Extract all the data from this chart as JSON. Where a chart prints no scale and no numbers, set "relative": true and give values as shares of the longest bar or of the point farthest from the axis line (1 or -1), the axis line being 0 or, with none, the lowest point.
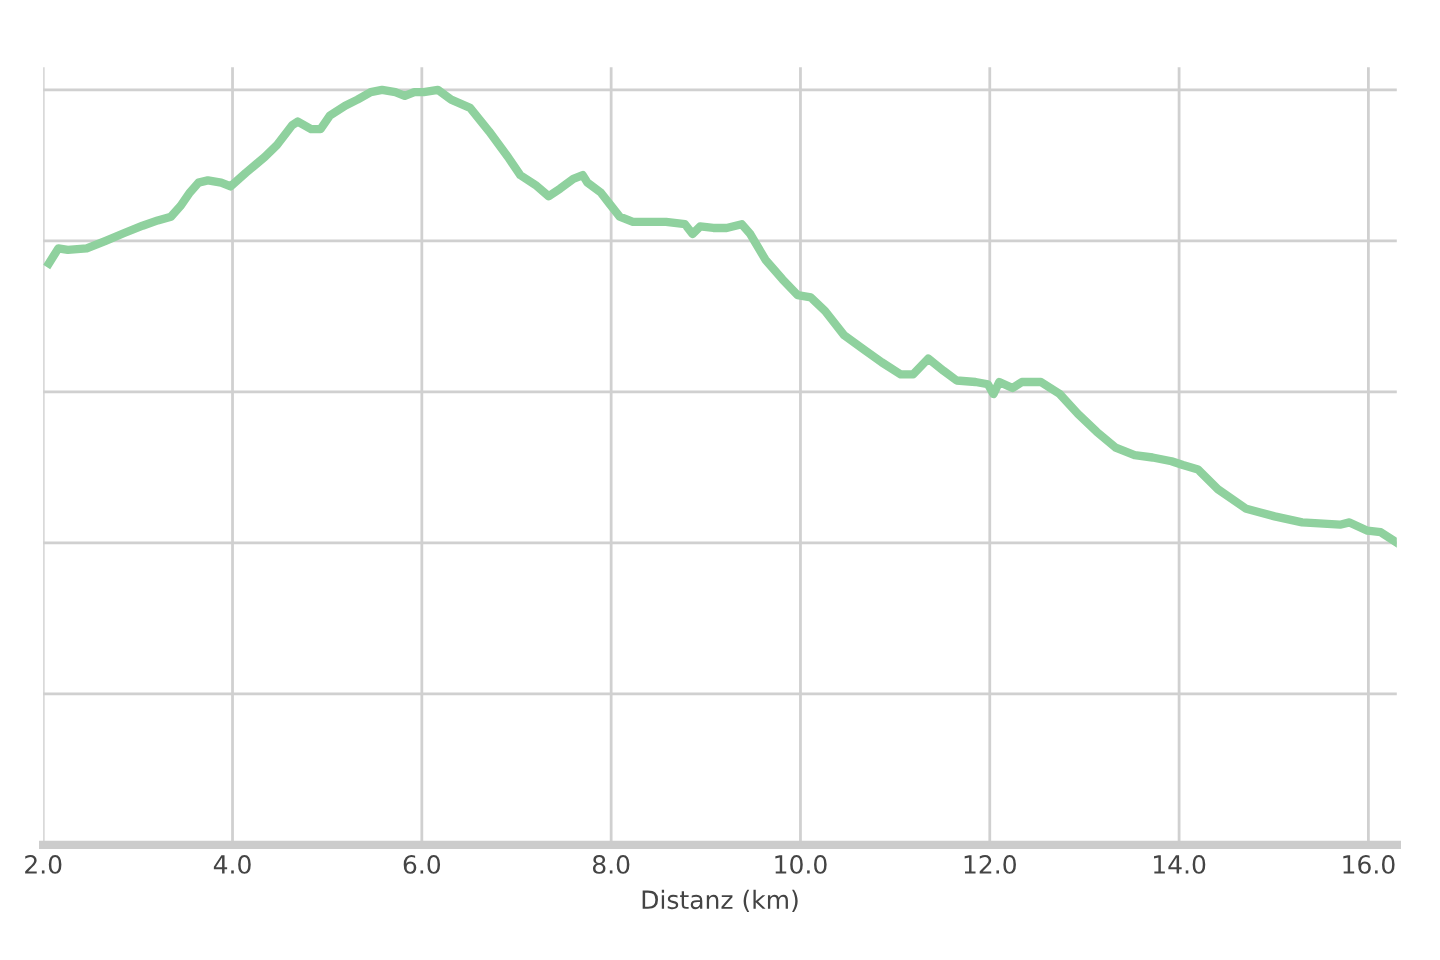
{
  "chart_data": {
    "type": "line",
    "xlabel": "Distanz (km)",
    "relative": true,
    "xlim": [
      2.0,
      16.3
    ],
    "xticks": [
      {
        "value": 2,
        "label": "2.0"
      },
      {
        "value": 4,
        "label": "4.0"
      },
      {
        "value": 6,
        "label": "6.0"
      },
      {
        "value": 8,
        "label": "8.0"
      },
      {
        "value": 10,
        "label": "10.0"
      },
      {
        "value": 12,
        "label": "12.0"
      },
      {
        "value": 14,
        "label": "14.0"
      },
      {
        "value": 16,
        "label": "16.0"
      }
    ],
    "grid": true,
    "marker": "none",
    "line_style": "solid",
    "series": [
      {
        "color": "#8fd19e",
        "x": [
          2.06,
          2.16,
          2.26,
          2.46,
          2.66,
          2.85,
          3.05,
          3.21,
          3.35,
          3.45,
          3.55,
          3.64,
          3.74,
          3.88,
          3.98,
          4.14,
          4.34,
          4.47,
          4.63,
          4.69,
          4.83,
          4.93,
          5.03,
          5.19,
          5.32,
          5.46,
          5.58,
          5.72,
          5.82,
          5.92,
          6.02,
          6.17,
          6.31,
          6.51,
          6.71,
          6.91,
          7.04,
          7.2,
          7.34,
          7.46,
          7.6,
          7.7,
          7.75,
          7.89,
          7.99,
          8.09,
          8.23,
          8.39,
          8.58,
          8.78,
          8.86,
          8.94,
          9.08,
          9.22,
          9.38,
          9.47,
          9.63,
          9.81,
          9.97,
          10.11,
          10.26,
          10.46,
          10.66,
          10.86,
          11.06,
          11.19,
          11.35,
          11.51,
          11.65,
          11.85,
          11.98,
          12.04,
          12.1,
          12.24,
          12.34,
          12.54,
          12.74,
          12.93,
          13.13,
          13.33,
          13.53,
          13.72,
          13.92,
          14.04,
          14.2,
          14.41,
          14.71,
          15.01,
          15.3,
          15.7,
          15.8,
          15.99,
          16.13,
          16.29
        ],
        "values": [
          0.77,
          0.79,
          0.788,
          0.79,
          0.8,
          0.81,
          0.82,
          0.827,
          0.832,
          0.846,
          0.864,
          0.877,
          0.88,
          0.877,
          0.872,
          0.89,
          0.911,
          0.927,
          0.953,
          0.958,
          0.948,
          0.948,
          0.966,
          0.979,
          0.987,
          0.997,
          1,
          0.997,
          0.992,
          0.997,
          0.997,
          1,
          0.987,
          0.976,
          0.945,
          0.911,
          0.887,
          0.874,
          0.859,
          0.869,
          0.882,
          0.887,
          0.877,
          0.864,
          0.848,
          0.832,
          0.825,
          0.825,
          0.825,
          0.822,
          0.809,
          0.819,
          0.817,
          0.817,
          0.822,
          0.809,
          0.775,
          0.749,
          0.728,
          0.725,
          0.707,
          0.675,
          0.657,
          0.639,
          0.623,
          0.623,
          0.644,
          0.628,
          0.615,
          0.613,
          0.61,
          0.597,
          0.613,
          0.605,
          0.613,
          0.613,
          0.597,
          0.571,
          0.547,
          0.526,
          0.516,
          0.513,
          0.508,
          0.503,
          0.497,
          0.471,
          0.445,
          0.435,
          0.427,
          0.424,
          0.427,
          0.416,
          0.414,
          0.401
        ]
      }
    ]
  }
}
